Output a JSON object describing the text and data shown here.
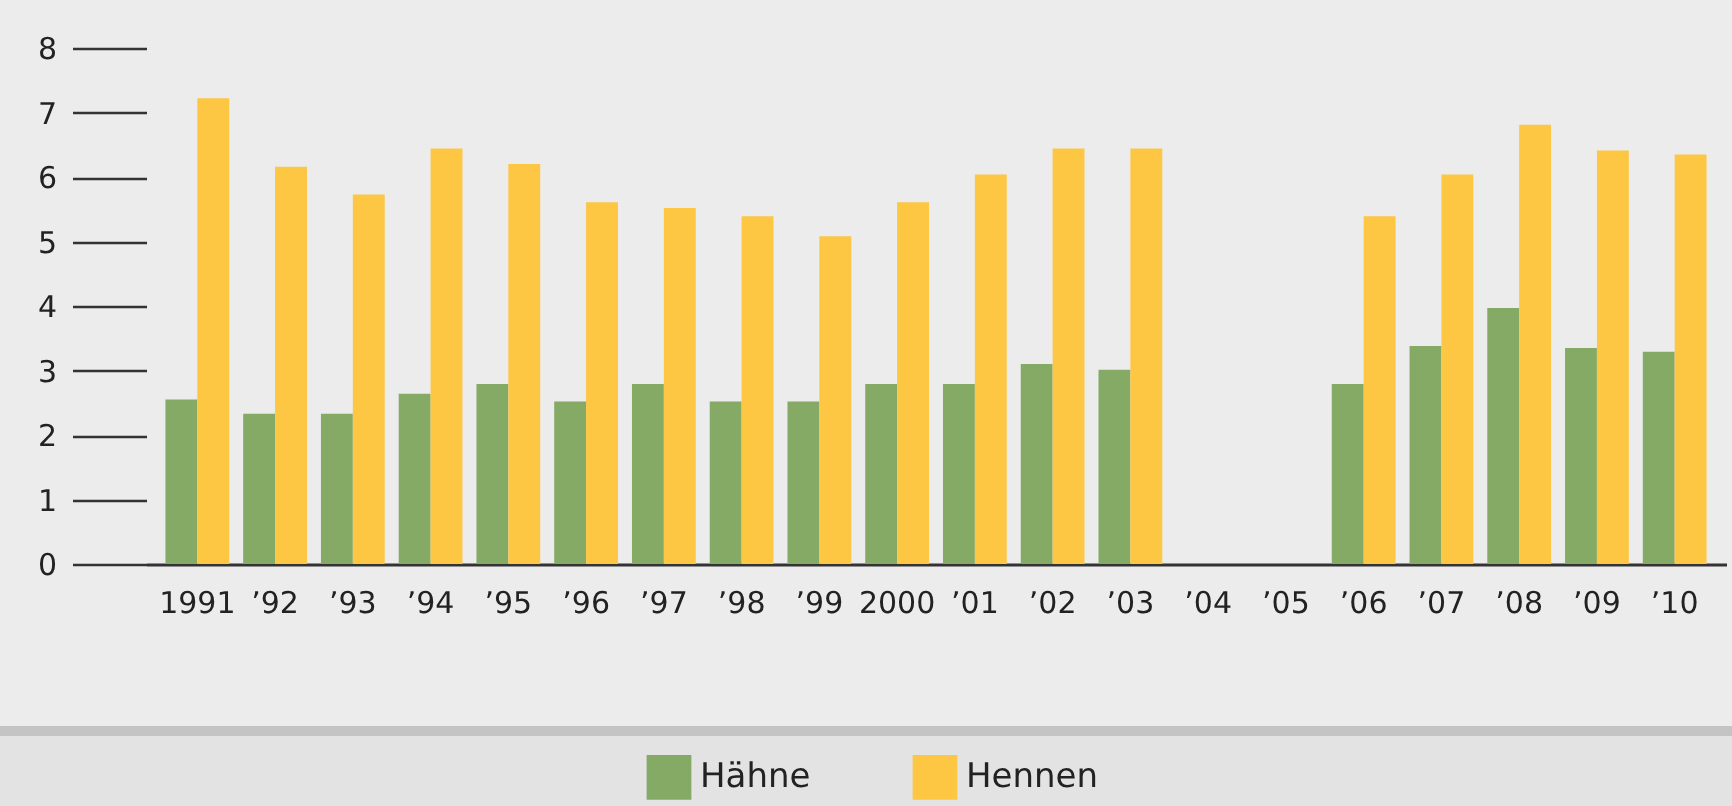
{
  "chart_data": {
    "type": "bar",
    "categories": [
      "1991",
      "’92",
      "’93",
      "’94",
      "’95",
      "’96",
      "’97",
      "’98",
      "’99",
      "2000",
      "’01",
      "’02",
      "’03",
      "’04",
      "’05",
      "’06",
      "’07",
      "’08",
      "’09",
      "’10"
    ],
    "series": [
      {
        "name": "Hähne",
        "color": "#84aa65",
        "values": [
          2.55,
          2.33,
          2.33,
          2.64,
          2.79,
          2.52,
          2.79,
          2.52,
          2.52,
          2.79,
          2.79,
          3.1,
          3.01,
          null,
          null,
          2.79,
          3.38,
          3.97,
          3.35,
          3.29
        ]
      },
      {
        "name": "Hennen",
        "color": "#fdc643",
        "values": [
          7.22,
          6.16,
          5.73,
          6.44,
          6.2,
          5.61,
          5.52,
          5.39,
          5.08,
          5.61,
          6.04,
          6.44,
          6.44,
          null,
          null,
          5.39,
          6.04,
          6.81,
          6.41,
          6.35
        ]
      }
    ],
    "ylim": [
      0,
      8
    ],
    "yticks": [
      0,
      1,
      2,
      3,
      4,
      5,
      6,
      7,
      8
    ],
    "grid": false,
    "legend": "bottom"
  }
}
